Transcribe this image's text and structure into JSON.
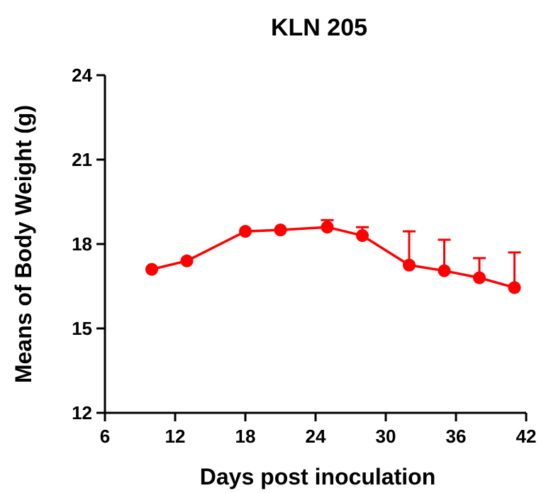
{
  "chart_data": {
    "type": "line",
    "title": "KLN 205",
    "xlabel": "Days post inoculation",
    "ylabel": "Means of Body Weight (g)",
    "xlim": [
      6,
      42
    ],
    "ylim": [
      12,
      24
    ],
    "x_ticks": [
      6,
      12,
      18,
      24,
      30,
      36,
      42
    ],
    "y_ticks": [
      12,
      15,
      18,
      21,
      24
    ],
    "grid": false,
    "legend": "none",
    "series": [
      {
        "color": "#ff0000",
        "x": [
          10,
          13,
          18,
          21,
          25,
          28,
          32,
          35,
          38,
          41
        ],
        "y": [
          17.1,
          17.4,
          18.45,
          18.5,
          18.6,
          18.3,
          17.25,
          17.05,
          16.8,
          16.45
        ],
        "error_upper": [
          0,
          0,
          0,
          0,
          0.25,
          0.3,
          1.2,
          1.1,
          0.7,
          1.25
        ]
      }
    ]
  }
}
